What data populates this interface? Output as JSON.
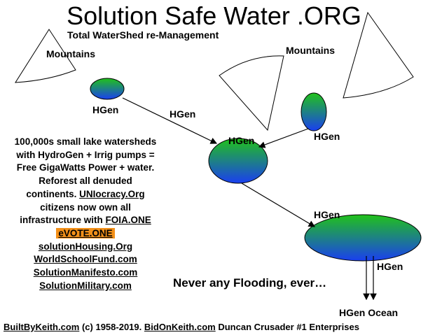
{
  "header": {
    "title": "Solution Safe Water .ORG",
    "subtitle": "Total WaterShed re-Management"
  },
  "mountain_labels": [
    "Mountains",
    "Mountains"
  ],
  "hgen_labels": [
    "HGen",
    "HGen",
    "HGen",
    "HGen",
    "HGen",
    "HGen",
    "HGen Ocean"
  ],
  "info_lines": [
    [
      "100,000s small lake watersheds"
    ],
    [
      "with HydroGen + Irrig pumps ="
    ],
    [
      "Free GigaWatts Power + water."
    ],
    [
      "Reforest all denuded"
    ],
    [
      "continents.",
      "UNIocracy.Org"
    ],
    [
      "citizens now own all"
    ],
    [
      "infrastructure with",
      "FOIA.ONE"
    ],
    [
      "eVOTE.ONE"
    ],
    [
      "solutionHousing.Org"
    ],
    [
      "WorldSchoolFund.com"
    ],
    [
      "SolutionManifesto.com"
    ],
    [
      "SolutionMilitary.com"
    ]
  ],
  "slogan": "Never any Flooding, ever…",
  "footer": [
    "BuiltByKeith.com",
    "(c) 1958-2019.",
    "BidOnKeith.com",
    "Duncan Crusader #1 Enterprises"
  ]
}
